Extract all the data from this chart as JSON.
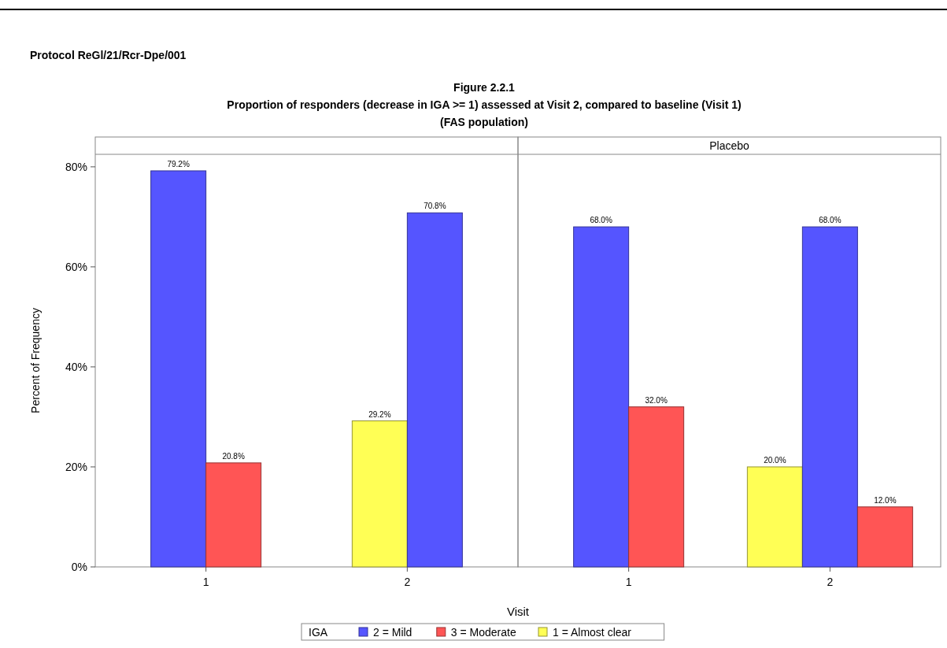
{
  "chart_data": [
    {
      "type": "bar",
      "title": "Figure 2.2.1",
      "subtitle": "Proportion of responders (decrease in IGA >= 1) assessed at Visit 2, compared to baseline (Visit 1)",
      "annotations": [
        "Protocol ReGl/21/Rcr-Dpe/001",
        "(FAS population)"
      ],
      "ylabel": "Percent of Frequency",
      "categories": [
        "1",
        "2"
      ],
      "ylim": [
        0,
        82.5
      ],
      "yticks": [
        {
          "value": 0,
          "label": "0%"
        },
        {
          "value": 20,
          "label": "20%"
        },
        {
          "value": 40,
          "label": "40%"
        },
        {
          "value": 60,
          "label": "60%"
        },
        {
          "value": 80,
          "label": "80%"
        }
      ],
      "series": [
        {
          "color": "#ffff55",
          "values": [
            null,
            29.2
          ],
          "value_labels": [
            null,
            "29.2%"
          ]
        },
        {
          "color": "#5555ff",
          "values": [
            79.2,
            70.8
          ],
          "value_labels": [
            "79.2%",
            "70.8%"
          ]
        },
        {
          "color": "#ff5555",
          "values": [
            20.8,
            null
          ],
          "value_labels": [
            "20.8%",
            null
          ]
        }
      ]
    },
    {
      "type": "bar",
      "title": "Placebo",
      "xlabel": "Visit",
      "legend_title": "IGA",
      "legend": "bottom",
      "tick_labels": "x",
      "categories": [
        "1",
        "2"
      ],
      "ylim": [
        0,
        82.5
      ],
      "yticks": [
        {
          "value": 0,
          "label": null
        },
        {
          "value": 20,
          "label": null
        },
        {
          "value": 40,
          "label": null
        },
        {
          "value": 60,
          "label": null
        },
        {
          "value": 80,
          "label": null
        }
      ],
      "series": [
        {
          "name": "1 = Almost clear",
          "color": "#ffff55",
          "values": [
            null,
            20.0
          ],
          "value_labels": [
            null,
            "20.0%"
          ]
        },
        {
          "name": "2 = Mild",
          "color": "#5555ff",
          "values": [
            68.0,
            68.0
          ],
          "value_labels": [
            "68.0%",
            "68.0%"
          ]
        },
        {
          "name": "3 = Moderate",
          "color": "#ff5555",
          "values": [
            32.0,
            12.0
          ],
          "value_labels": [
            "32.0%",
            "12.0%"
          ]
        }
      ]
    }
  ]
}
